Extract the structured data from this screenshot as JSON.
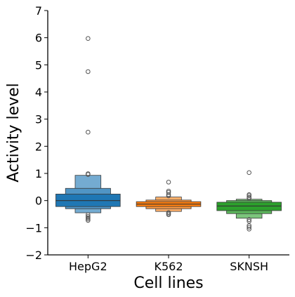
{
  "chart_data": {
    "type": "boxen",
    "xlabel": "Cell lines",
    "ylabel": "Activity level",
    "ylim": [
      -2,
      7
    ],
    "yticks": [
      -2,
      -1,
      0,
      1,
      2,
      3,
      4,
      5,
      6,
      7
    ],
    "categories": [
      "HepG2",
      "K562",
      "SKNSH"
    ],
    "series": [
      {
        "category": "HepG2",
        "color": "#1f77b4",
        "median": 0.0,
        "boxes": [
          {
            "low": -0.22,
            "high": 0.24
          },
          {
            "low": -0.3,
            "high": 0.45
          },
          {
            "low": -0.45,
            "high": 0.93
          }
        ],
        "outliers": [
          5.97,
          4.75,
          2.52,
          0.99,
          0.96,
          -0.52,
          -0.58,
          -0.63,
          -0.68,
          -0.73
        ]
      },
      {
        "category": "K562",
        "color": "#ff7f0e",
        "median": -0.13,
        "boxes": [
          {
            "low": -0.22,
            "high": -0.04
          },
          {
            "low": -0.3,
            "high": 0.02
          },
          {
            "low": -0.4,
            "high": 0.13
          }
        ],
        "outliers": [
          0.68,
          0.35,
          0.3,
          0.22,
          0.17,
          -0.44,
          -0.48,
          -0.52
        ]
      },
      {
        "category": "SKNSH",
        "color": "#2ca02c",
        "median": -0.2,
        "boxes": [
          {
            "low": -0.37,
            "high": -0.06
          },
          {
            "low": -0.48,
            "high": 0.0
          },
          {
            "low": -0.65,
            "high": 0.05
          }
        ],
        "outliers": [
          1.03,
          0.22,
          0.18,
          0.12,
          0.08,
          -0.7,
          -0.76,
          -0.92,
          -0.98,
          -1.05
        ]
      }
    ]
  }
}
